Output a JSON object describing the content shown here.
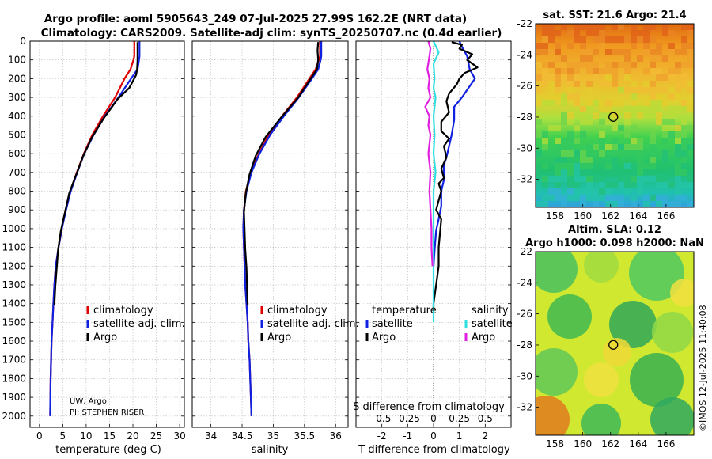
{
  "header": {
    "title_line1": "Argo profile: aoml 5905643_249 07-Jul-2025 27.99S 162.2E (NRT data)",
    "title_line2": "Climatology: CARS2009. Satellite-adj clim: synTS_20250707.nc (0.4d earlier)"
  },
  "colors": {
    "climatology": "#e00000",
    "satellite": "#1020e0",
    "argo": "#000000",
    "salinity_sat": "#30e0e0",
    "salinity_argo": "#e020e0",
    "grid": "#b0b0b0"
  },
  "credits": {
    "institution": "UW, Argo",
    "pi": "PI: STEPHEN RISER",
    "imos": "©IMOS 12-Jul-2025 11:40:08"
  },
  "chart_data": [
    {
      "type": "line",
      "id": "temperature",
      "xlabel": "temperature (deg C)",
      "ylabel": "",
      "xlim": [
        -2,
        31
      ],
      "ylim": [
        2060,
        0
      ],
      "xticks": [
        0,
        5,
        10,
        15,
        20,
        25,
        30
      ],
      "yticks": [
        0,
        100,
        200,
        300,
        400,
        500,
        600,
        700,
        800,
        900,
        1000,
        1100,
        1200,
        1300,
        1400,
        1500,
        1600,
        1700,
        1800,
        1900,
        2000
      ],
      "legend": [
        "climatology",
        "satellite-adj. clim.",
        "Argo"
      ],
      "series": [
        {
          "name": "climatology",
          "color": "#e00000",
          "x": [
            20.3,
            20.3,
            20.1,
            19.5,
            18.2,
            16.2,
            13.6,
            11.3,
            9.5,
            8.0,
            6.6,
            5.6,
            4.8,
            4.1,
            3.5,
            3.2,
            3.0,
            2.8,
            2.6,
            2.5,
            2.4,
            2.3
          ],
          "y": [
            0,
            80,
            100,
            150,
            200,
            300,
            400,
            500,
            600,
            700,
            800,
            900,
            1000,
            1100,
            1200,
            1300,
            1400,
            1500,
            1600,
            1700,
            1800,
            2000
          ]
        },
        {
          "name": "satellite-adj. clim.",
          "color": "#1020e0",
          "x": [
            21.4,
            21.4,
            21.3,
            21.0,
            19.6,
            16.9,
            14.0,
            11.6,
            9.6,
            8.1,
            6.7,
            5.7,
            4.8,
            4.1,
            3.5,
            3.2,
            3.0,
            2.8,
            2.6,
            2.5,
            2.4,
            2.3
          ],
          "y": [
            0,
            80,
            100,
            150,
            200,
            300,
            400,
            500,
            600,
            700,
            800,
            900,
            1000,
            1100,
            1200,
            1300,
            1400,
            1500,
            1600,
            1700,
            1800,
            2000
          ]
        },
        {
          "name": "Argo",
          "color": "#000000",
          "x": [
            21.0,
            21.0,
            21.0,
            20.9,
            20.7,
            19.2,
            16.7,
            13.8,
            11.3,
            9.4,
            7.9,
            6.4,
            5.5,
            4.6,
            4.0,
            3.4,
            3.2
          ],
          "y": [
            5,
            50,
            100,
            150,
            180,
            250,
            310,
            410,
            510,
            610,
            710,
            810,
            910,
            1010,
            1110,
            1310,
            1410
          ]
        }
      ]
    },
    {
      "type": "line",
      "id": "salinity",
      "xlabel": "salinity",
      "ylabel": "",
      "xlim": [
        33.7,
        36.2
      ],
      "ylim": [
        2060,
        0
      ],
      "xticks": [
        34,
        34.5,
        35,
        35.5,
        36
      ],
      "legend": [
        "climatology",
        "satellite-adj. clim.",
        "Argo"
      ],
      "series": [
        {
          "name": "climatology",
          "color": "#e00000",
          "x": [
            35.75,
            35.75,
            35.73,
            35.68,
            35.58,
            35.38,
            35.14,
            34.93,
            34.77,
            34.64,
            34.56,
            34.53,
            34.52,
            34.53,
            34.54,
            34.55,
            34.57,
            34.59,
            34.6,
            34.62,
            34.63,
            34.65
          ],
          "y": [
            0,
            80,
            100,
            150,
            200,
            300,
            400,
            500,
            600,
            700,
            800,
            900,
            1000,
            1100,
            1200,
            1300,
            1400,
            1500,
            1600,
            1700,
            1800,
            2000
          ]
        },
        {
          "name": "satellite-adj. clim.",
          "color": "#1020e0",
          "x": [
            35.77,
            35.77,
            35.76,
            35.72,
            35.62,
            35.41,
            35.17,
            34.95,
            34.78,
            34.65,
            34.57,
            34.53,
            34.52,
            34.53,
            34.54,
            34.55,
            34.57,
            34.59,
            34.6,
            34.62,
            34.63,
            34.65
          ],
          "y": [
            0,
            80,
            100,
            150,
            200,
            300,
            400,
            500,
            600,
            700,
            800,
            900,
            1000,
            1100,
            1200,
            1300,
            1400,
            1500,
            1600,
            1700,
            1800,
            2000
          ]
        },
        {
          "name": "Argo",
          "color": "#000000",
          "x": [
            35.72,
            35.71,
            35.72,
            35.7,
            35.6,
            35.4,
            35.12,
            34.88,
            34.72,
            34.62,
            34.56,
            34.53,
            34.54,
            34.55,
            34.57,
            34.58,
            34.59
          ],
          "y": [
            5,
            50,
            100,
            150,
            200,
            300,
            410,
            510,
            610,
            710,
            810,
            910,
            1010,
            1110,
            1210,
            1310,
            1410
          ]
        }
      ]
    },
    {
      "type": "line",
      "id": "difference",
      "xlabel": "T difference from climatology",
      "xlabel_top": "S difference from climatology",
      "xlim": [
        -3,
        3
      ],
      "ylim": [
        2060,
        0
      ],
      "xticks": [
        -2,
        -1,
        0,
        1,
        2
      ],
      "xticks_top": [
        "-0.5",
        "-0.25",
        "0",
        "0.25",
        "0.5"
      ],
      "legend_temperature_title": "temperature",
      "legend_salinity_title": "salinity",
      "legend_temperature": [
        "satellite",
        "Argo"
      ],
      "legend_salinity": [
        "satellite",
        "Argo"
      ],
      "series": [
        {
          "name": "T satellite",
          "color": "#1020e0",
          "x": [
            1.0,
            1.1,
            1.3,
            1.4,
            1.6,
            1.1,
            0.8,
            0.8,
            0.7,
            0.6,
            0.5,
            0.4,
            0.4,
            0.3,
            0.3,
            0.2,
            0.1,
            0.05,
            0
          ],
          "y": [
            0,
            30,
            80,
            150,
            200,
            300,
            350,
            420,
            500,
            560,
            620,
            660,
            740,
            800,
            880,
            950,
            1010,
            1100,
            1200
          ]
        },
        {
          "name": "T Argo",
          "color": "#000000",
          "x": [
            0.7,
            1.1,
            1.0,
            1.5,
            1.3,
            1.7,
            1.2,
            1.0,
            0.9,
            0.6,
            0.5,
            0.6,
            0.3,
            0.3,
            0.6,
            0.4,
            0.5,
            0.3,
            0.4,
            0.2,
            0.3,
            0.2,
            0.1,
            0.3,
            0.2,
            0.2,
            0.1,
            0,
            0
          ],
          "y": [
            5,
            20,
            40,
            70,
            100,
            140,
            170,
            200,
            230,
            280,
            320,
            380,
            430,
            480,
            520,
            560,
            620,
            680,
            730,
            760,
            800,
            850,
            900,
            950,
            1100,
            1200,
            1300,
            1400,
            1450
          ]
        },
        {
          "name": "S satellite",
          "color": "#30e0e0",
          "x": [
            0,
            0.05,
            0,
            0.01,
            0,
            0.02,
            0,
            0.01,
            0,
            0.02,
            0,
            0,
            0,
            0,
            0,
            0
          ],
          "y": [
            0,
            60,
            120,
            200,
            250,
            300,
            400,
            500,
            600,
            700,
            800,
            900,
            1000,
            1200,
            1400,
            1500
          ]
        },
        {
          "name": "S Argo",
          "color": "#e020e0",
          "x": [
            -0.05,
            -0.03,
            -0.04,
            -0.06,
            -0.04,
            -0.05,
            -0.03,
            -0.08,
            -0.04,
            -0.05,
            -0.03,
            -0.05,
            -0.03,
            -0.04,
            -0.03,
            -0.02,
            -0.02,
            -0.01
          ],
          "y": [
            0,
            40,
            80,
            150,
            200,
            250,
            300,
            350,
            400,
            450,
            500,
            600,
            700,
            800,
            900,
            1000,
            1100,
            1200
          ]
        }
      ]
    },
    {
      "type": "heatmap",
      "id": "sst_map",
      "title": "sat. SST: 21.6 Argo: 21.4",
      "xticks": [
        158,
        160,
        162,
        164,
        166
      ],
      "yticks": [
        -22,
        -24,
        -26,
        -28,
        -30,
        -32
      ],
      "xlim": [
        156.6,
        168
      ],
      "ylim": [
        -33.8,
        -22
      ],
      "marker": {
        "lon": 162.2,
        "lat": -27.99
      }
    },
    {
      "type": "heatmap",
      "id": "sla_map",
      "title_line1": "Altim. SLA: 0.12",
      "title_line2": "Argo h1000: 0.098 h2000: NaN",
      "xticks": [
        158,
        160,
        162,
        164,
        166
      ],
      "yticks": [
        -22,
        -24,
        -26,
        -28,
        -30,
        -32
      ],
      "xlim": [
        156.6,
        168
      ],
      "ylim": [
        -33.8,
        -22
      ],
      "marker": {
        "lon": 162.2,
        "lat": -27.99
      }
    }
  ]
}
